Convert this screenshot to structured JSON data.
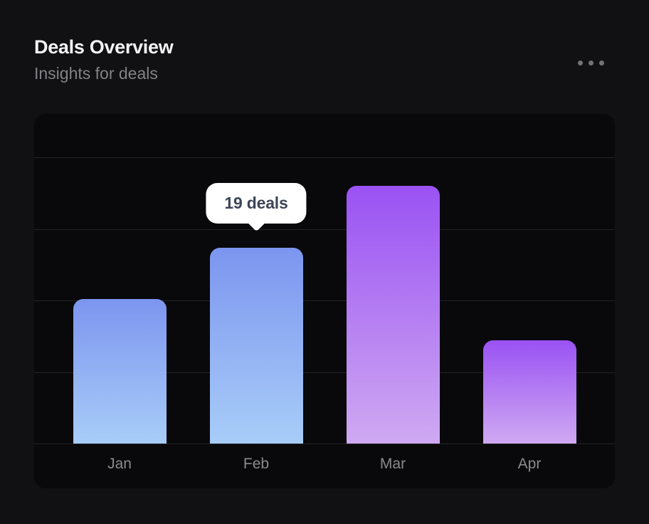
{
  "header": {
    "title": "Deals Overview",
    "subtitle": "Insights for deals"
  },
  "menu": {
    "icon": "ellipsis"
  },
  "tooltip": {
    "label": "19 deals",
    "target_category": "Feb"
  },
  "chart_data": {
    "type": "bar",
    "title": "Deals Overview",
    "categories": [
      "Jan",
      "Feb",
      "Mar",
      "Apr"
    ],
    "values": [
      14,
      19,
      25,
      10
    ],
    "value_unit": "deals",
    "annotated_point": {
      "category": "Feb",
      "label": "19 deals"
    },
    "xlabel": "",
    "ylabel": "",
    "ylim": [
      0,
      32
    ],
    "grid": "horizontal",
    "gridline_count": 5,
    "legend": "none",
    "bar_gradients": [
      {
        "top": "#7C95EF",
        "bottom": "#A8CDF8"
      },
      {
        "top": "#7C95EF",
        "bottom": "#A8CDF8"
      },
      {
        "top": "#9A52F3",
        "bottom": "#CFA9F2"
      },
      {
        "top": "#9A52F3",
        "bottom": "#CFA9F2"
      }
    ]
  },
  "colors": {
    "page_bg": "#111113",
    "panel_bg": "#09090B",
    "gridline": "#232327",
    "title_text": "#F4F4F5",
    "subtitle_text": "#828288",
    "axis_label_text": "#8A8A90",
    "ellipsis_dot": "#737378",
    "tooltip_bg": "#FFFFFF",
    "tooltip_text": "#3D4557"
  }
}
